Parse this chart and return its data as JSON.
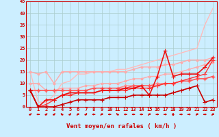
{
  "xlabel": "Vent moyen/en rafales ( km/h )",
  "xlim": [
    -0.5,
    23.5
  ],
  "ylim": [
    0,
    45
  ],
  "yticks": [
    0,
    5,
    10,
    15,
    20,
    25,
    30,
    35,
    40,
    45
  ],
  "xticks": [
    0,
    1,
    2,
    3,
    4,
    5,
    6,
    7,
    8,
    9,
    10,
    11,
    12,
    13,
    14,
    15,
    16,
    17,
    18,
    19,
    20,
    21,
    22,
    23
  ],
  "background_color": "#cceeff",
  "grid_color": "#aacccc",
  "series": [
    {
      "color": "#ffbbbb",
      "lw": 1.0,
      "marker": null,
      "ms": 0,
      "values": [
        15,
        2,
        2,
        5,
        10,
        11,
        14,
        14,
        15,
        15,
        15,
        16,
        16,
        17,
        18,
        19,
        20,
        21,
        22,
        23,
        24,
        25,
        35,
        42
      ]
    },
    {
      "color": "#ffaaaa",
      "lw": 1.0,
      "marker": "o",
      "ms": 2,
      "values": [
        15,
        14,
        15,
        10,
        15,
        15,
        15,
        15,
        15,
        15,
        15,
        15,
        15,
        16,
        17,
        17,
        17,
        18,
        18,
        19,
        20,
        20,
        20,
        21
      ]
    },
    {
      "color": "#ffaaaa",
      "lw": 1.0,
      "marker": "o",
      "ms": 2,
      "values": [
        10,
        10,
        7,
        7,
        8,
        8,
        8,
        9,
        9,
        10,
        10,
        10,
        11,
        12,
        12,
        13,
        13,
        14,
        14,
        15,
        16,
        17,
        18,
        19
      ]
    },
    {
      "color": "#ff8888",
      "lw": 1.0,
      "marker": "D",
      "ms": 2,
      "values": [
        7,
        7,
        7,
        7,
        7,
        7,
        7,
        7,
        8,
        8,
        8,
        8,
        9,
        9,
        9,
        9,
        10,
        10,
        10,
        11,
        11,
        12,
        12,
        13
      ]
    },
    {
      "color": "#ff5555",
      "lw": 1.0,
      "marker": "+",
      "ms": 4,
      "values": [
        7,
        7,
        7,
        7,
        7,
        7,
        7,
        7,
        8,
        8,
        8,
        8,
        8,
        9,
        9,
        9,
        9,
        10,
        10,
        11,
        11,
        12,
        12,
        13
      ]
    },
    {
      "color": "#ff3333",
      "lw": 1.0,
      "marker": "+",
      "ms": 4,
      "values": [
        7,
        0,
        1,
        3,
        5,
        5,
        6,
        6,
        6,
        7,
        7,
        7,
        7,
        8,
        8,
        8,
        9,
        10,
        10,
        11,
        12,
        13,
        14,
        20
      ]
    },
    {
      "color": "#ee1111",
      "lw": 1.2,
      "marker": "+",
      "ms": 4,
      "values": [
        7,
        0,
        3,
        3,
        5,
        6,
        6,
        6,
        6,
        7,
        7,
        7,
        8,
        8,
        9,
        5,
        13,
        24,
        13,
        14,
        14,
        14,
        17,
        21
      ]
    },
    {
      "color": "#cc0000",
      "lw": 1.2,
      "marker": "+",
      "ms": 4,
      "values": [
        7,
        0,
        0,
        0,
        1,
        2,
        3,
        3,
        3,
        3,
        4,
        4,
        4,
        5,
        5,
        5,
        5,
        5,
        6,
        7,
        8,
        9,
        2,
        3
      ]
    }
  ],
  "arrow_angles": [
    225,
    180,
    225,
    225,
    315,
    225,
    45,
    225,
    180,
    45,
    180,
    315,
    180,
    180,
    180,
    45,
    0,
    0,
    270,
    0,
    0,
    45,
    0,
    45
  ]
}
